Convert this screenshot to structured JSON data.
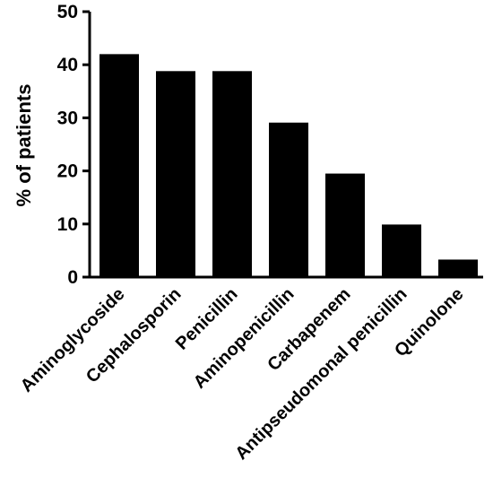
{
  "chart_data": {
    "type": "bar",
    "title": "",
    "xlabel": "",
    "ylabel": "% of patients",
    "categories": [
      "Aminoglycoside",
      "Cephalosporin",
      "Penicillin",
      "Aminopenicillin",
      "Carbapenem",
      "Antipseudomonal penicillin",
      "Quinolone"
    ],
    "values": [
      42,
      38.8,
      38.8,
      29.1,
      19.5,
      9.9,
      3.3
    ],
    "ylim": [
      0,
      50
    ],
    "yticks": [
      "0",
      "10",
      "20",
      "30",
      "40",
      "50"
    ],
    "grid": false,
    "legend": "none",
    "bar_color": "#000000"
  }
}
